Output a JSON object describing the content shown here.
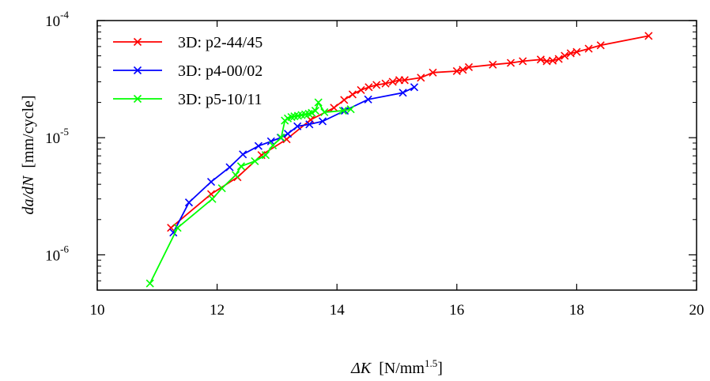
{
  "chart_data": {
    "type": "line",
    "xlabel_prefix": "ΔK",
    "xlabel_unit": "[N/mm",
    "xlabel_unit_exp": "1.5",
    "xlabel_unit_close": "]",
    "ylabel_main": "da/dN",
    "ylabel_unit": "[mm/cycle]",
    "xlim": [
      10,
      20
    ],
    "ylim": [
      5e-07,
      0.0001
    ],
    "yscale": "log",
    "legend_position": "top-left",
    "x_ticks": [
      {
        "value": 10,
        "label": "10"
      },
      {
        "value": 12,
        "label": "12"
      },
      {
        "value": 14,
        "label": "14"
      },
      {
        "value": 16,
        "label": "16"
      },
      {
        "value": 18,
        "label": "18"
      },
      {
        "value": 20,
        "label": "20"
      }
    ],
    "y_ticks": [
      {
        "value": 1e-06,
        "base": "10",
        "exp": "-6"
      },
      {
        "value": 1e-05,
        "base": "10",
        "exp": "-5"
      },
      {
        "value": 0.0001,
        "base": "10",
        "exp": "-4"
      }
    ],
    "series": [
      {
        "name": "3D: p2-44/45",
        "color": "#ff0000",
        "x": [
          11.23,
          11.9,
          12.34,
          12.74,
          13.16,
          13.56,
          13.95,
          14.12,
          14.26,
          14.4,
          14.53,
          14.66,
          14.81,
          14.93,
          15.04,
          15.13,
          15.4,
          15.6,
          16.0,
          16.1,
          16.2,
          16.6,
          16.9,
          17.1,
          17.4,
          17.5,
          17.6,
          17.7,
          17.8,
          17.9,
          18.0,
          18.2,
          18.4,
          19.2
        ],
        "y": [
          1.7e-06,
          3.3e-06,
          4.6e-06,
          7.1e-06,
          9.7e-06,
          1.42e-05,
          1.8e-05,
          2.1e-05,
          2.34e-05,
          2.55e-05,
          2.7e-05,
          2.82e-05,
          2.9e-05,
          3e-05,
          3.1e-05,
          3.1e-05,
          3.25e-05,
          3.6e-05,
          3.7e-05,
          3.8e-05,
          4e-05,
          4.2e-05,
          4.35e-05,
          4.5e-05,
          4.65e-05,
          4.5e-05,
          4.55e-05,
          4.7e-05,
          5e-05,
          5.25e-05,
          5.4e-05,
          5.75e-05,
          6.15e-05,
          7.4e-05
        ]
      },
      {
        "name": "3D: p4-00/02",
        "color": "#0000ff",
        "x": [
          11.27,
          11.53,
          11.9,
          12.21,
          12.43,
          12.69,
          12.9,
          13.06,
          13.18,
          13.34,
          13.54,
          13.76,
          14.13,
          14.52,
          15.1,
          15.29
        ],
        "y": [
          1.55e-06,
          2.8e-06,
          4.2e-06,
          5.6e-06,
          7.2e-06,
          8.5e-06,
          9.3e-06,
          1e-05,
          1.08e-05,
          1.25e-05,
          1.3e-05,
          1.38e-05,
          1.7e-05,
          2.12e-05,
          2.42e-05,
          2.7e-05
        ]
      },
      {
        "name": "3D: p5-10/11",
        "color": "#00ff00",
        "x": [
          10.88,
          11.34,
          11.92,
          12.08,
          12.31,
          12.4,
          12.63,
          12.81,
          12.93,
          13.07,
          13.13,
          13.18,
          13.24,
          13.29,
          13.35,
          13.41,
          13.47,
          13.53,
          13.58,
          13.64,
          13.69,
          13.79,
          14.1,
          14.23
        ],
        "y": [
          5.7e-07,
          1.7e-06,
          3e-06,
          3.7e-06,
          4.8e-06,
          5.7e-06,
          6.3e-06,
          7.1e-06,
          8.6e-06,
          1e-05,
          1.4e-05,
          1.46e-05,
          1.5e-05,
          1.52e-05,
          1.54e-05,
          1.56e-05,
          1.58e-05,
          1.6e-05,
          1.63e-05,
          1.7e-05,
          2e-05,
          1.65e-05,
          1.7e-05,
          1.75e-05
        ]
      }
    ]
  }
}
